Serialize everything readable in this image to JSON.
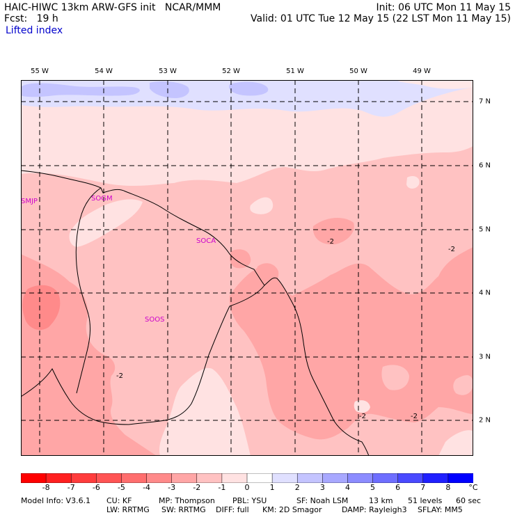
{
  "header": {
    "model_line": "HAIC-HIWC 13km ARW-GFS init   NCAR/MMM",
    "init": "Init: 06 UTC Mon 11 May 15",
    "fcst": "Fcst:   19 h",
    "valid": "Valid: 01 UTC Tue 12 May 15 (22 LST Mon 11 May 15)",
    "field": "Lifted index"
  },
  "map": {
    "lon_labels": [
      "55 W",
      "54 W",
      "53 W",
      "52 W",
      "51 W",
      "50 W",
      "49 W"
    ],
    "lat_labels": [
      "7 N",
      "6 N",
      "5 N",
      "4 N",
      "3 N",
      "2 N"
    ],
    "stations": [
      "SMJP",
      "SOGM",
      "SOCA",
      "SOOS"
    ],
    "contour_labels": [
      "-2",
      "-2",
      "-2",
      "-2",
      "-2"
    ]
  },
  "colorbar": {
    "labels": [
      "-8",
      "-7",
      "-6",
      "-5",
      "-4",
      "-3",
      "-2",
      "-1",
      "0",
      "1",
      "2",
      "3",
      "4",
      "5",
      "6",
      "7",
      "8"
    ],
    "unit": "°C",
    "colors": [
      "#ff0000",
      "#ff2020",
      "#ff3c3c",
      "#ff5454",
      "#ff6e6e",
      "#ff8a8a",
      "#ffa6a6",
      "#ffc2c2",
      "#ffe2e2",
      "#ffffff",
      "#e0e0ff",
      "#c4c4ff",
      "#a8a8ff",
      "#8c8cff",
      "#6e6eff",
      "#4a4aff",
      "#2020ff",
      "#0000ff"
    ]
  },
  "footer": {
    "line1": [
      "Model Info: V3.6.1",
      "CU: KF",
      "MP: Thompson",
      "PBL: YSU",
      "SF: Noah LSM",
      "13 km",
      "51 levels",
      "60 sec"
    ],
    "line2": [
      "LW: RRTMG",
      "SW: RRTMG",
      "DIFF: full",
      "KM: 2D Smagor",
      "DAMP: Rayleigh3",
      "SFLAY: MM5"
    ]
  }
}
